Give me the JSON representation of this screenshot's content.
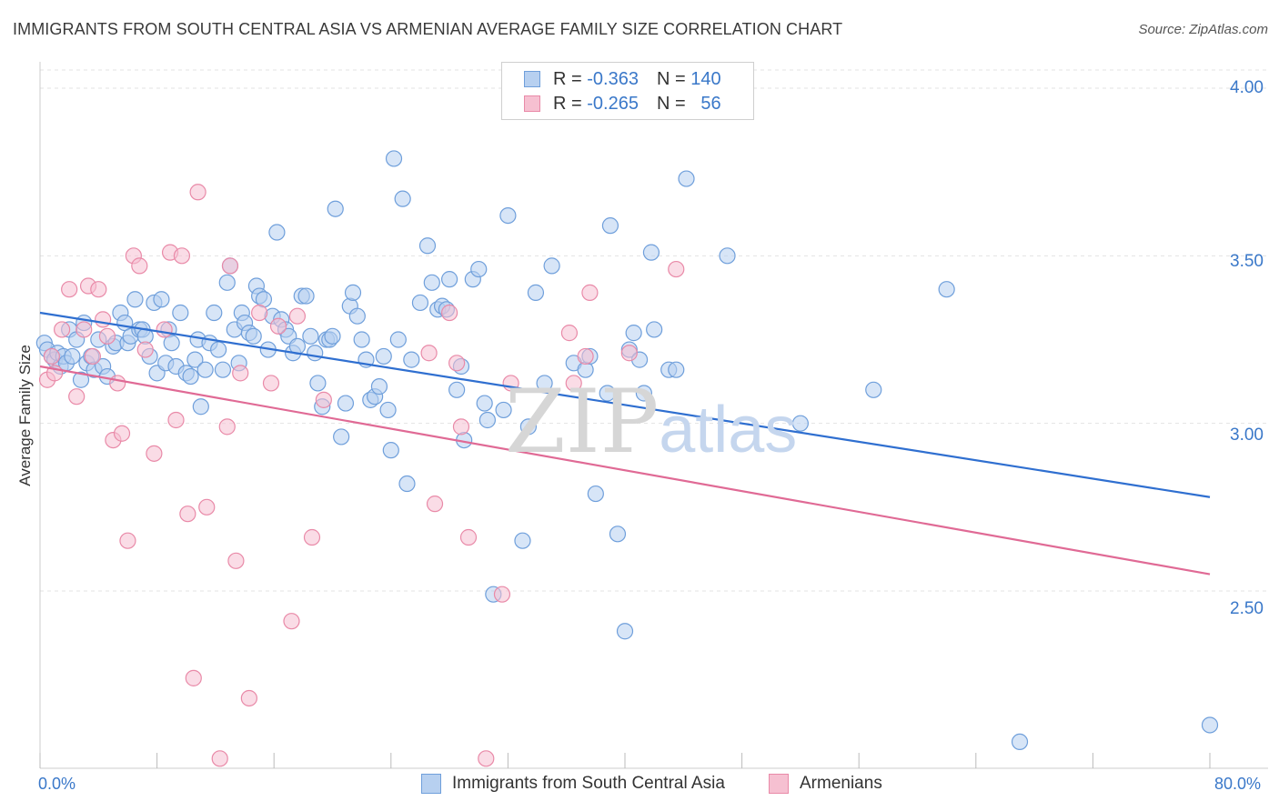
{
  "header": {
    "title": "IMMIGRANTS FROM SOUTH CENTRAL ASIA VS ARMENIAN AVERAGE FAMILY SIZE CORRELATION CHART",
    "source": "Source: ZipAtlas.com"
  },
  "legend_top": {
    "rows": [
      {
        "r_label": "R =",
        "r_value": "-0.363",
        "n_label": "N =",
        "n_value": "140"
      },
      {
        "r_label": "R =",
        "r_value": "-0.265",
        "n_label": "N =",
        "n_value": "56"
      }
    ]
  },
  "watermark": {
    "zip": "ZIP",
    "atlas": "atlas"
  },
  "colors": {
    "blue_fill": "#b7d0f0",
    "blue_stroke": "#6f9fdb",
    "blue_line": "#2f6fd0",
    "pink_fill": "#f6c0d1",
    "pink_stroke": "#e98aa8",
    "pink_line": "#e06a95",
    "axis_text": "#3a78c9",
    "grid": "#e3e3e3"
  },
  "chart_data": {
    "type": "scatter",
    "title": "IMMIGRANTS FROM SOUTH CENTRAL ASIA VS ARMENIAN AVERAGE FAMILY SIZE CORRELATION CHART",
    "xlabel": "",
    "ylabel": "Average Family Size",
    "xlim": [
      0,
      80
    ],
    "ylim": [
      2.0,
      4.07
    ],
    "x_tick_labels": [
      "0.0%",
      "80.0%"
    ],
    "y_ticks": [
      2.5,
      3.0,
      3.5,
      4.0
    ],
    "y_tick_labels": [
      "2.50",
      "3.00",
      "3.50",
      "4.00"
    ],
    "legend_placement": "top-center",
    "series": [
      {
        "name": "Immigrants from South Central Asia",
        "R": -0.363,
        "N": 140,
        "trend": {
          "x": [
            0,
            80
          ],
          "y": [
            3.33,
            2.78
          ]
        },
        "points": [
          [
            0.3,
            3.24
          ],
          [
            0.5,
            3.22
          ],
          [
            0.8,
            3.2
          ],
          [
            1.0,
            3.19
          ],
          [
            1.2,
            3.21
          ],
          [
            1.4,
            3.17
          ],
          [
            1.6,
            3.2
          ],
          [
            1.8,
            3.18
          ],
          [
            2.0,
            3.28
          ],
          [
            2.2,
            3.2
          ],
          [
            2.5,
            3.25
          ],
          [
            2.8,
            3.13
          ],
          [
            3.0,
            3.3
          ],
          [
            3.2,
            3.18
          ],
          [
            3.5,
            3.2
          ],
          [
            3.7,
            3.16
          ],
          [
            4.0,
            3.25
          ],
          [
            4.3,
            3.17
          ],
          [
            4.6,
            3.14
          ],
          [
            5.0,
            3.23
          ],
          [
            5.2,
            3.24
          ],
          [
            5.5,
            3.33
          ],
          [
            5.8,
            3.3
          ],
          [
            6.0,
            3.24
          ],
          [
            6.2,
            3.26
          ],
          [
            6.5,
            3.37
          ],
          [
            6.8,
            3.28
          ],
          [
            7.0,
            3.28
          ],
          [
            7.2,
            3.26
          ],
          [
            7.5,
            3.2
          ],
          [
            7.8,
            3.36
          ],
          [
            8.0,
            3.15
          ],
          [
            8.3,
            3.37
          ],
          [
            8.6,
            3.18
          ],
          [
            8.8,
            3.28
          ],
          [
            9.0,
            3.24
          ],
          [
            9.3,
            3.17
          ],
          [
            9.6,
            3.33
          ],
          [
            10.0,
            3.15
          ],
          [
            10.3,
            3.14
          ],
          [
            10.6,
            3.19
          ],
          [
            10.8,
            3.25
          ],
          [
            11.0,
            3.05
          ],
          [
            11.3,
            3.16
          ],
          [
            11.6,
            3.24
          ],
          [
            11.9,
            3.33
          ],
          [
            12.2,
            3.22
          ],
          [
            12.5,
            3.16
          ],
          [
            12.8,
            3.42
          ],
          [
            13.0,
            3.47
          ],
          [
            13.3,
            3.28
          ],
          [
            13.6,
            3.18
          ],
          [
            13.8,
            3.33
          ],
          [
            14.0,
            3.3
          ],
          [
            14.3,
            3.27
          ],
          [
            14.6,
            3.26
          ],
          [
            14.8,
            3.41
          ],
          [
            15.0,
            3.38
          ],
          [
            15.3,
            3.37
          ],
          [
            15.6,
            3.22
          ],
          [
            15.9,
            3.32
          ],
          [
            16.2,
            3.57
          ],
          [
            16.5,
            3.31
          ],
          [
            16.8,
            3.28
          ],
          [
            17.0,
            3.26
          ],
          [
            17.3,
            3.21
          ],
          [
            17.6,
            3.23
          ],
          [
            17.9,
            3.38
          ],
          [
            18.2,
            3.38
          ],
          [
            18.5,
            3.26
          ],
          [
            18.8,
            3.21
          ],
          [
            19.0,
            3.12
          ],
          [
            19.3,
            3.05
          ],
          [
            19.6,
            3.25
          ],
          [
            19.8,
            3.25
          ],
          [
            20.0,
            3.26
          ],
          [
            20.2,
            3.64
          ],
          [
            20.6,
            2.96
          ],
          [
            20.9,
            3.06
          ],
          [
            21.2,
            3.35
          ],
          [
            21.4,
            3.39
          ],
          [
            21.7,
            3.32
          ],
          [
            22.0,
            3.25
          ],
          [
            22.3,
            3.19
          ],
          [
            22.6,
            3.07
          ],
          [
            22.9,
            3.08
          ],
          [
            23.2,
            3.11
          ],
          [
            23.5,
            3.2
          ],
          [
            23.8,
            3.04
          ],
          [
            24.0,
            2.92
          ],
          [
            24.2,
            3.79
          ],
          [
            24.5,
            3.25
          ],
          [
            24.8,
            3.67
          ],
          [
            25.1,
            2.82
          ],
          [
            25.4,
            3.19
          ],
          [
            26.0,
            3.36
          ],
          [
            26.5,
            3.53
          ],
          [
            26.8,
            3.42
          ],
          [
            27.2,
            3.34
          ],
          [
            27.5,
            3.35
          ],
          [
            27.8,
            3.34
          ],
          [
            28.0,
            3.43
          ],
          [
            28.5,
            3.1
          ],
          [
            28.8,
            3.17
          ],
          [
            29.0,
            2.95
          ],
          [
            29.6,
            3.43
          ],
          [
            30.0,
            3.46
          ],
          [
            30.4,
            3.06
          ],
          [
            30.6,
            3.01
          ],
          [
            31.0,
            2.49
          ],
          [
            31.7,
            3.04
          ],
          [
            32.0,
            3.62
          ],
          [
            33.0,
            2.65
          ],
          [
            33.4,
            2.99
          ],
          [
            33.9,
            3.39
          ],
          [
            34.5,
            3.12
          ],
          [
            35.0,
            3.47
          ],
          [
            36.5,
            3.18
          ],
          [
            37.3,
            3.16
          ],
          [
            37.6,
            3.2
          ],
          [
            38.0,
            2.79
          ],
          [
            38.8,
            3.09
          ],
          [
            39.0,
            3.59
          ],
          [
            39.5,
            2.67
          ],
          [
            40.0,
            2.38
          ],
          [
            40.3,
            3.22
          ],
          [
            40.6,
            3.27
          ],
          [
            41.0,
            3.19
          ],
          [
            41.3,
            3.09
          ],
          [
            41.8,
            3.51
          ],
          [
            42.0,
            3.28
          ],
          [
            43.0,
            3.16
          ],
          [
            43.5,
            3.16
          ],
          [
            44.2,
            3.73
          ],
          [
            47.0,
            3.5
          ],
          [
            52.0,
            3.0
          ],
          [
            57.0,
            3.1
          ],
          [
            62.0,
            3.4
          ],
          [
            67.0,
            2.05
          ],
          [
            80.0,
            2.1
          ]
        ]
      },
      {
        "name": "Armenians",
        "R": -0.265,
        "N": 56,
        "trend": {
          "x": [
            0,
            80
          ],
          "y": [
            3.17,
            2.55
          ]
        },
        "points": [
          [
            0.5,
            3.13
          ],
          [
            0.8,
            3.2
          ],
          [
            1.0,
            3.15
          ],
          [
            1.5,
            3.28
          ],
          [
            2.0,
            3.4
          ],
          [
            2.5,
            3.08
          ],
          [
            3.0,
            3.28
          ],
          [
            3.3,
            3.41
          ],
          [
            3.6,
            3.2
          ],
          [
            4.0,
            3.4
          ],
          [
            4.3,
            3.31
          ],
          [
            4.6,
            3.26
          ],
          [
            5.0,
            2.95
          ],
          [
            5.3,
            3.12
          ],
          [
            5.6,
            2.97
          ],
          [
            6.0,
            2.65
          ],
          [
            6.4,
            3.5
          ],
          [
            6.8,
            3.47
          ],
          [
            7.2,
            3.22
          ],
          [
            7.8,
            2.91
          ],
          [
            8.5,
            3.28
          ],
          [
            8.9,
            3.51
          ],
          [
            9.3,
            3.01
          ],
          [
            9.7,
            3.5
          ],
          [
            10.1,
            2.73
          ],
          [
            10.5,
            2.24
          ],
          [
            10.8,
            3.69
          ],
          [
            11.4,
            2.75
          ],
          [
            12.3,
            2.0
          ],
          [
            12.8,
            2.99
          ],
          [
            13.0,
            3.47
          ],
          [
            13.4,
            2.59
          ],
          [
            13.7,
            3.15
          ],
          [
            14.3,
            2.18
          ],
          [
            15.0,
            3.33
          ],
          [
            15.8,
            3.12
          ],
          [
            16.3,
            3.29
          ],
          [
            17.2,
            2.41
          ],
          [
            17.6,
            3.32
          ],
          [
            18.6,
            2.66
          ],
          [
            19.4,
            3.07
          ],
          [
            26.6,
            3.21
          ],
          [
            27.0,
            2.76
          ],
          [
            28.0,
            3.33
          ],
          [
            28.5,
            3.18
          ],
          [
            28.8,
            2.99
          ],
          [
            29.3,
            2.66
          ],
          [
            30.5,
            2.0
          ],
          [
            31.6,
            2.49
          ],
          [
            32.2,
            3.12
          ],
          [
            36.2,
            3.27
          ],
          [
            36.5,
            3.12
          ],
          [
            37.3,
            3.2
          ],
          [
            37.6,
            3.39
          ],
          [
            40.3,
            3.21
          ],
          [
            43.5,
            3.46
          ]
        ]
      }
    ]
  },
  "bottom_legend": {
    "series_1": "Immigrants from South Central Asia",
    "series_2": "Armenians"
  },
  "axes": {
    "ylabel": "Average Family Size",
    "x_min_label": "0.0%",
    "x_max_label": "80.0%",
    "y_labels": [
      "4.00",
      "3.50",
      "3.00",
      "2.50"
    ]
  }
}
